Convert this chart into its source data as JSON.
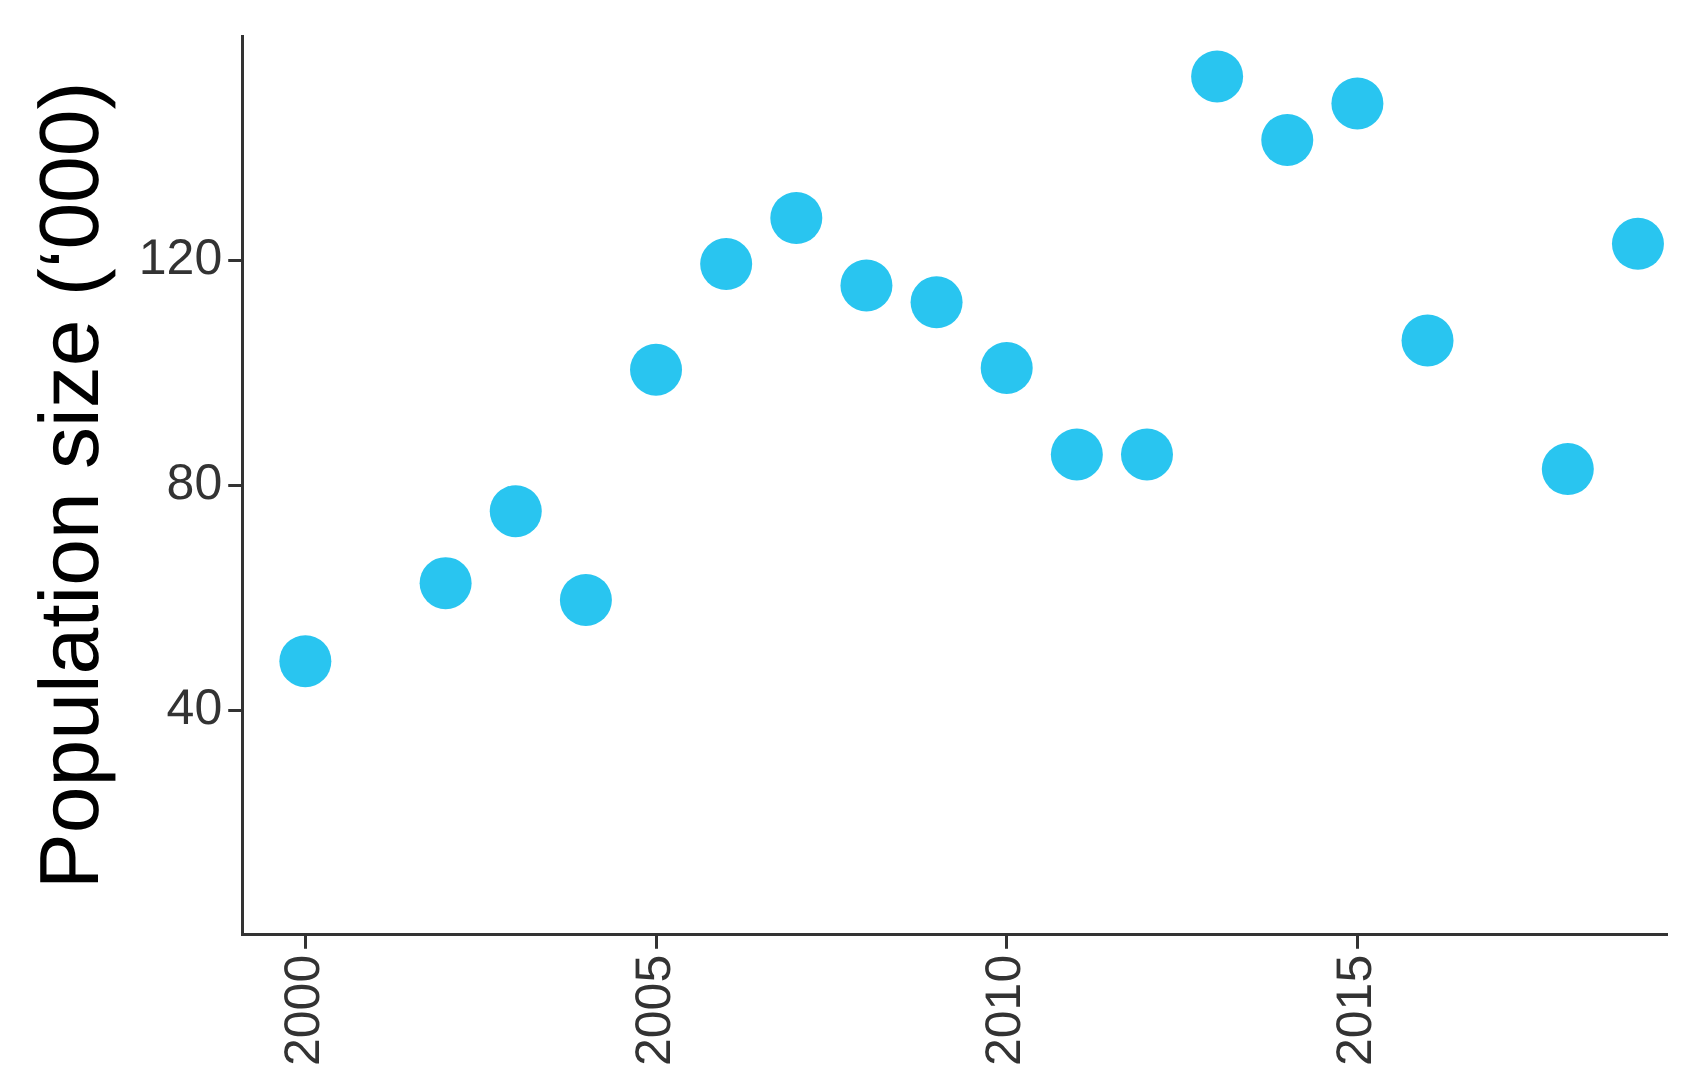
{
  "chart_data": {
    "type": "scatter",
    "ylabel": "Population size (‘000)",
    "x": [
      2000,
      2002,
      2003,
      2004,
      2005,
      2006,
      2007,
      2008,
      2009,
      2010,
      2011,
      2012,
      2013,
      2014,
      2015,
      2016,
      2018,
      2019
    ],
    "series": [
      {
        "color": "#29c5f0",
        "values": [
          48.7,
          62.6,
          75.4,
          59.6,
          100.6,
          119.4,
          127.6,
          115.6,
          112.6,
          100.9,
          85.5,
          85.5,
          152.8,
          141.5,
          148,
          105.8,
          82.9,
          123
        ]
      }
    ],
    "xlim": [
      1999.1,
      2019.4
    ],
    "xticks": [
      2000,
      2005,
      2010,
      2015
    ],
    "ylim": [
      0,
      160
    ],
    "yticks": [
      40,
      80,
      120
    ],
    "grid": false,
    "legend": false,
    "marker": "circle"
  }
}
